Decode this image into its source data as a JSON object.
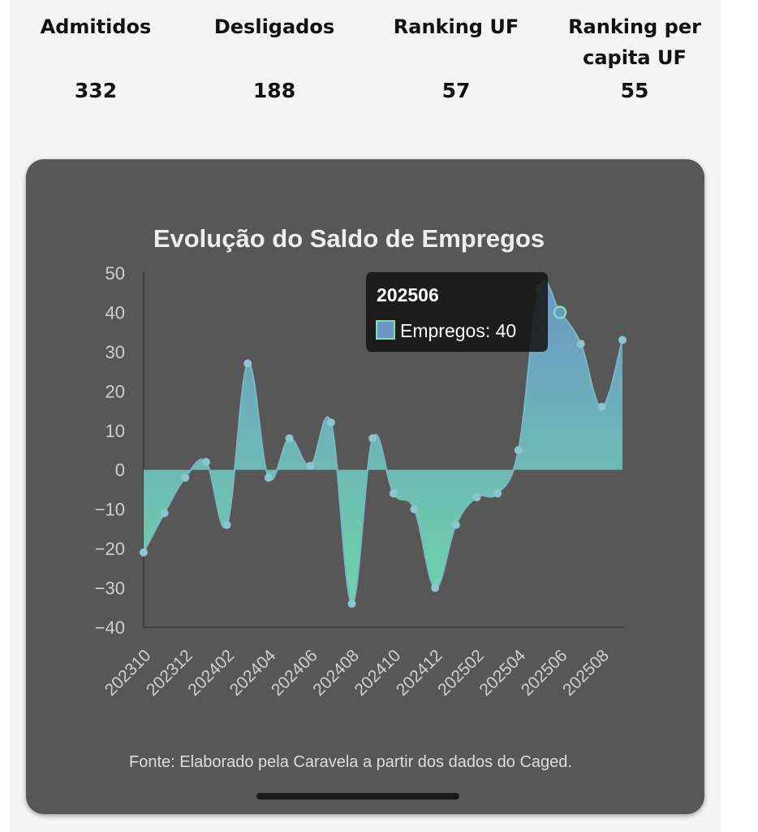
{
  "stats": {
    "items": [
      {
        "label": "Admitidos",
        "value": "332"
      },
      {
        "label": "Desligados",
        "value": "188"
      },
      {
        "label": "Ranking UF",
        "value": "57"
      },
      {
        "label": "Ranking per capita UF",
        "value": "55"
      }
    ]
  },
  "colors": {
    "card_bg": "#575757",
    "area_top": "#6b97c6",
    "area_bottom": "#6fd4a8",
    "title": "#eeeeee",
    "axis_text": "#cfcfcf"
  },
  "chart_data": {
    "type": "area",
    "title": "Evolução do Saldo de Empregos",
    "source": "Fonte: Elaborado pela Caravela a partir dos dados do Caged.",
    "series": [
      {
        "name": "Empregos",
        "x": [
          "202310",
          "202311",
          "202312",
          "202401",
          "202402",
          "202403",
          "202404",
          "202405",
          "202406",
          "202407",
          "202408",
          "202409",
          "202410",
          "202411",
          "202412",
          "202501",
          "202502",
          "202503",
          "202504",
          "202505",
          "202506",
          "202507",
          "202508",
          "202509"
        ],
        "values": [
          -21,
          -11,
          -2,
          2,
          -14,
          27,
          -2,
          8,
          1,
          12,
          -34,
          8,
          -6,
          -10,
          -30,
          -14,
          -7,
          -6,
          5,
          46,
          40,
          32,
          16,
          33
        ]
      }
    ],
    "xtick_labels": [
      "202310",
      "202312",
      "202402",
      "202404",
      "202406",
      "202408",
      "202410",
      "202412",
      "202502",
      "202504",
      "202506",
      "202508"
    ],
    "ylim": [
      -40,
      50
    ],
    "yticks": [
      50,
      40,
      30,
      20,
      10,
      0,
      -10,
      -20,
      -30,
      -40
    ],
    "highlight": {
      "index": 20,
      "title": "202506",
      "label": "Empregos: 40"
    }
  }
}
